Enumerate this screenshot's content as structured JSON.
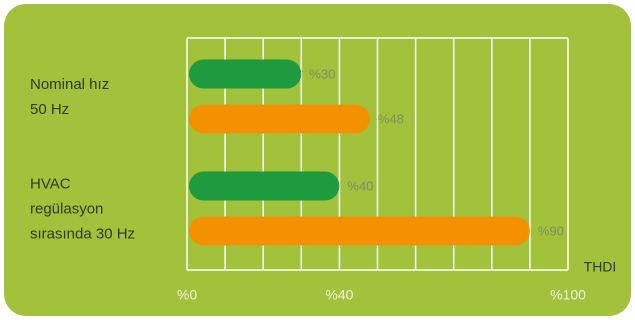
{
  "chart_data": {
    "type": "bar",
    "orientation": "horizontal",
    "categories": [
      "Nominal hız\n50 Hz",
      "HVAC\nregülasyon\nsırasında 30 Hz"
    ],
    "series": [
      {
        "color": "#1f9a3e",
        "values": [
          30,
          40
        ],
        "value_labels": [
          "%30",
          "%40"
        ]
      },
      {
        "color": "#f39200",
        "values": [
          48,
          90
        ],
        "value_labels": [
          "%48",
          "%90"
        ]
      }
    ],
    "xlabel": "THDI",
    "xlim": [
      0,
      100
    ],
    "xticks": [
      {
        "value": 0,
        "label": "%0"
      },
      {
        "value": 40,
        "label": "%40"
      },
      {
        "value": 100,
        "label": "%100"
      }
    ],
    "xgrid": [
      0,
      10,
      20,
      30,
      40,
      50,
      60,
      70,
      80,
      90,
      100
    ],
    "grid": true,
    "background": "#a2c23b"
  }
}
